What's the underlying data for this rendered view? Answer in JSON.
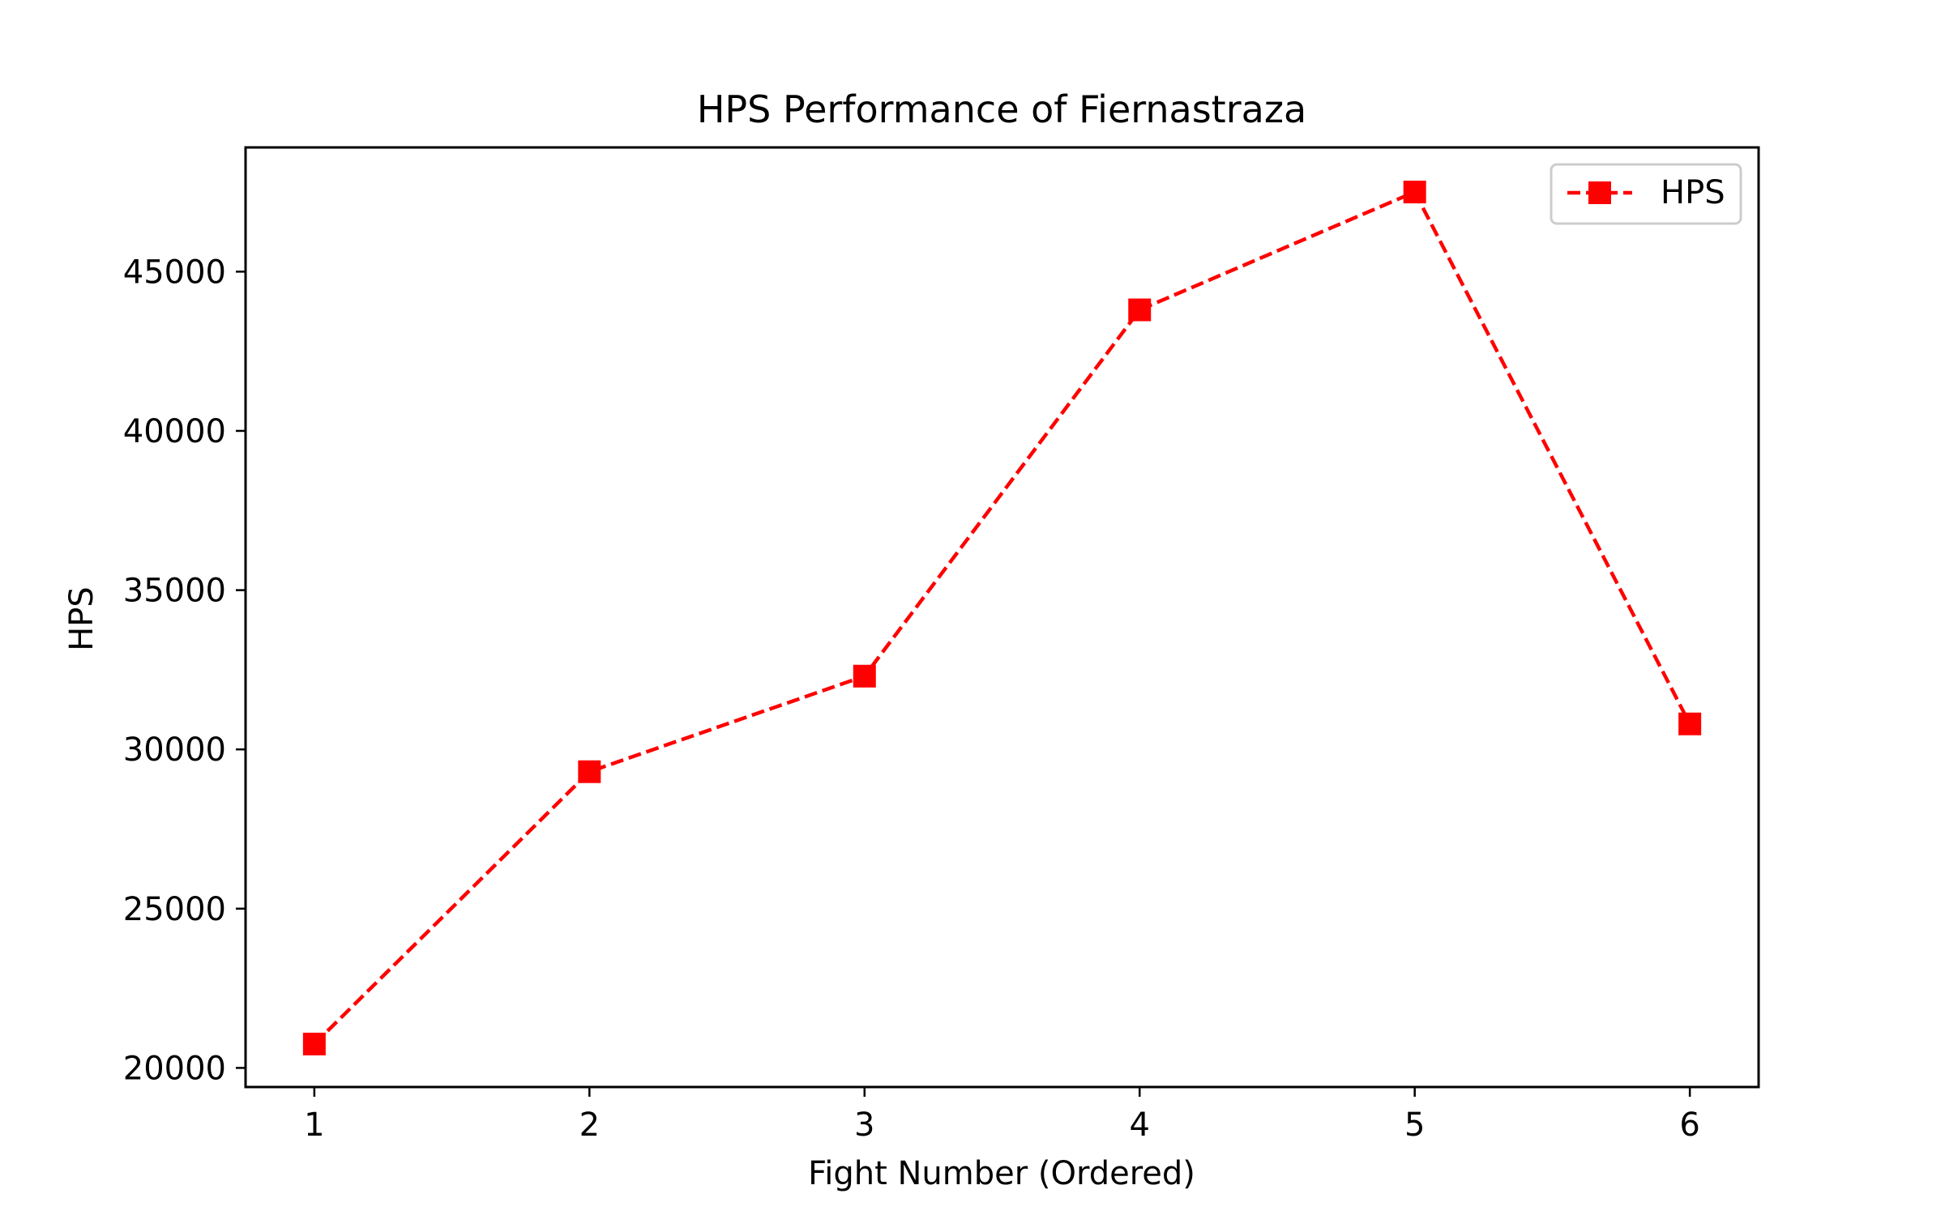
{
  "chart_data": {
    "type": "line",
    "title": "HPS Performance of Fiernastraza",
    "xlabel": "Fight Number (Ordered)",
    "ylabel": "HPS",
    "x": [
      1,
      2,
      3,
      4,
      5,
      6
    ],
    "x_ticks": [
      "1",
      "2",
      "3",
      "4",
      "5",
      "6"
    ],
    "y_ticks": [
      "20000",
      "25000",
      "30000",
      "35000",
      "40000",
      "45000"
    ],
    "y_tick_values": [
      20000,
      25000,
      30000,
      35000,
      40000,
      45000
    ],
    "xlim": [
      0.75,
      6.25
    ],
    "ylim": [
      19400,
      48900
    ],
    "grid": false,
    "legend_position": "top-right",
    "series": [
      {
        "name": "HPS",
        "color": "#ff0000",
        "line_style": "dashed",
        "marker": "square",
        "values": [
          20750,
          29300,
          32300,
          43800,
          47500,
          30800
        ]
      }
    ]
  }
}
